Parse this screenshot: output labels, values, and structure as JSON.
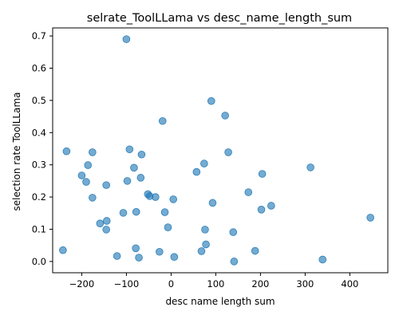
{
  "chart_data": {
    "type": "scatter",
    "title": "selrate_ToolLLama vs desc_name_length_sum",
    "xlabel": "desc name length sum",
    "ylabel": "selection rate ToolLLama",
    "xlim": [
      -265,
      485
    ],
    "ylim": [
      -0.035,
      0.725
    ],
    "xticks": [
      -200,
      -100,
      0,
      100,
      200,
      300,
      400
    ],
    "xtick_labels": [
      "−200",
      "−100",
      "0",
      "100",
      "200",
      "300",
      "400"
    ],
    "yticks": [
      0.0,
      0.1,
      0.2,
      0.3,
      0.4,
      0.5,
      0.6,
      0.7
    ],
    "ytick_labels": [
      "0.0",
      "0.1",
      "0.2",
      "0.3",
      "0.4",
      "0.5",
      "0.6",
      "0.7"
    ],
    "grid": false,
    "color": "#1f77b4",
    "points": [
      {
        "x": -100,
        "y": 0.69
      },
      {
        "x": 90,
        "y": 0.498
      },
      {
        "x": 121,
        "y": 0.453
      },
      {
        "x": -19,
        "y": 0.436
      },
      {
        "x": -234,
        "y": 0.342
      },
      {
        "x": -176,
        "y": 0.339
      },
      {
        "x": -93,
        "y": 0.348
      },
      {
        "x": -66,
        "y": 0.332
      },
      {
        "x": 128,
        "y": 0.339
      },
      {
        "x": -186,
        "y": 0.299
      },
      {
        "x": -83,
        "y": 0.291
      },
      {
        "x": 74,
        "y": 0.304
      },
      {
        "x": 57,
        "y": 0.278
      },
      {
        "x": 312,
        "y": 0.292
      },
      {
        "x": 204,
        "y": 0.272
      },
      {
        "x": -200,
        "y": 0.267
      },
      {
        "x": -68,
        "y": 0.26
      },
      {
        "x": -190,
        "y": 0.247
      },
      {
        "x": -98,
        "y": 0.25
      },
      {
        "x": -145,
        "y": 0.237
      },
      {
        "x": -52,
        "y": 0.209
      },
      {
        "x": -48,
        "y": 0.203
      },
      {
        "x": -35,
        "y": 0.2
      },
      {
        "x": 173,
        "y": 0.215
      },
      {
        "x": -176,
        "y": 0.198
      },
      {
        "x": 5,
        "y": 0.193
      },
      {
        "x": 93,
        "y": 0.182
      },
      {
        "x": 224,
        "y": 0.173
      },
      {
        "x": 202,
        "y": 0.161
      },
      {
        "x": -107,
        "y": 0.151
      },
      {
        "x": -78,
        "y": 0.154
      },
      {
        "x": -14,
        "y": 0.153
      },
      {
        "x": 446,
        "y": 0.136
      },
      {
        "x": -144,
        "y": 0.126
      },
      {
        "x": -159,
        "y": 0.118
      },
      {
        "x": -145,
        "y": 0.099
      },
      {
        "x": -7,
        "y": 0.106
      },
      {
        "x": 76,
        "y": 0.099
      },
      {
        "x": 139,
        "y": 0.091
      },
      {
        "x": 78,
        "y": 0.053
      },
      {
        "x": -79,
        "y": 0.041
      },
      {
        "x": -242,
        "y": 0.035
      },
      {
        "x": -26,
        "y": 0.03
      },
      {
        "x": 68,
        "y": 0.032
      },
      {
        "x": 188,
        "y": 0.033
      },
      {
        "x": -121,
        "y": 0.017
      },
      {
        "x": -72,
        "y": 0.012
      },
      {
        "x": 7,
        "y": 0.014
      },
      {
        "x": 339,
        "y": 0.006
      },
      {
        "x": 141,
        "y": 0.0
      }
    ]
  }
}
